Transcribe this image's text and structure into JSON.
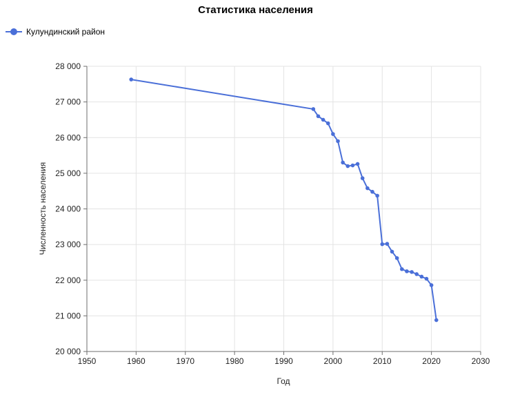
{
  "chart_data": {
    "type": "line",
    "title": "Статистика населения",
    "xlabel": "Год",
    "ylabel": "Численность населения",
    "xlim": [
      1950,
      2030
    ],
    "ylim": [
      20000,
      28000
    ],
    "x_ticks": [
      1950,
      1960,
      1970,
      1980,
      1990,
      2000,
      2010,
      2020,
      2030
    ],
    "y_ticks": [
      20000,
      21000,
      22000,
      23000,
      24000,
      25000,
      26000,
      27000,
      28000
    ],
    "y_tick_labels": [
      "20 000",
      "21 000",
      "22 000",
      "23 000",
      "24 000",
      "25 000",
      "26 000",
      "27 000",
      "28 000"
    ],
    "grid": true,
    "legend_position": "top-left",
    "color": "#4a6fd8",
    "series": [
      {
        "name": "Кулундинский район",
        "x": [
          1959,
          1996,
          1997,
          1998,
          1999,
          2000,
          2001,
          2002,
          2003,
          2004,
          2005,
          2006,
          2007,
          2008,
          2009,
          2010,
          2011,
          2012,
          2013,
          2014,
          2015,
          2016,
          2017,
          2018,
          2019,
          2020,
          2021
        ],
        "values": [
          27630,
          26800,
          26600,
          26500,
          26400,
          26100,
          25900,
          25300,
          25200,
          25220,
          25260,
          24860,
          24580,
          24480,
          24370,
          23010,
          23020,
          22800,
          22620,
          22310,
          22250,
          22230,
          22170,
          22100,
          22040,
          21860,
          20880
        ]
      }
    ]
  }
}
